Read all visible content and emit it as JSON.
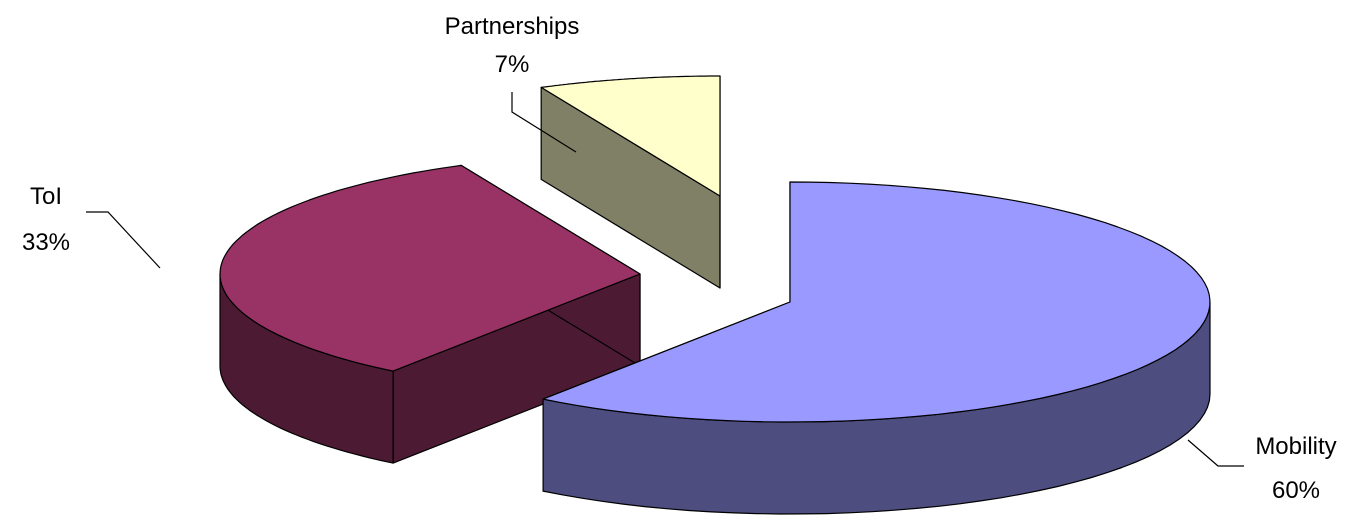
{
  "chart_data": {
    "type": "pie",
    "title": "",
    "three_d": true,
    "exploded": true,
    "slices": [
      {
        "label": "Mobility",
        "percent_label": "60%",
        "value": 60,
        "top_color": "#9999ff",
        "side_color": "#4d4d80"
      },
      {
        "label": "ToI",
        "percent_label": "33%",
        "value": 33,
        "top_color": "#993366",
        "side_color": "#4d1a33"
      },
      {
        "label": "Partnerships",
        "percent_label": "7%",
        "value": 7,
        "top_color": "#ffffcc",
        "side_color": "#808066"
      }
    ]
  }
}
